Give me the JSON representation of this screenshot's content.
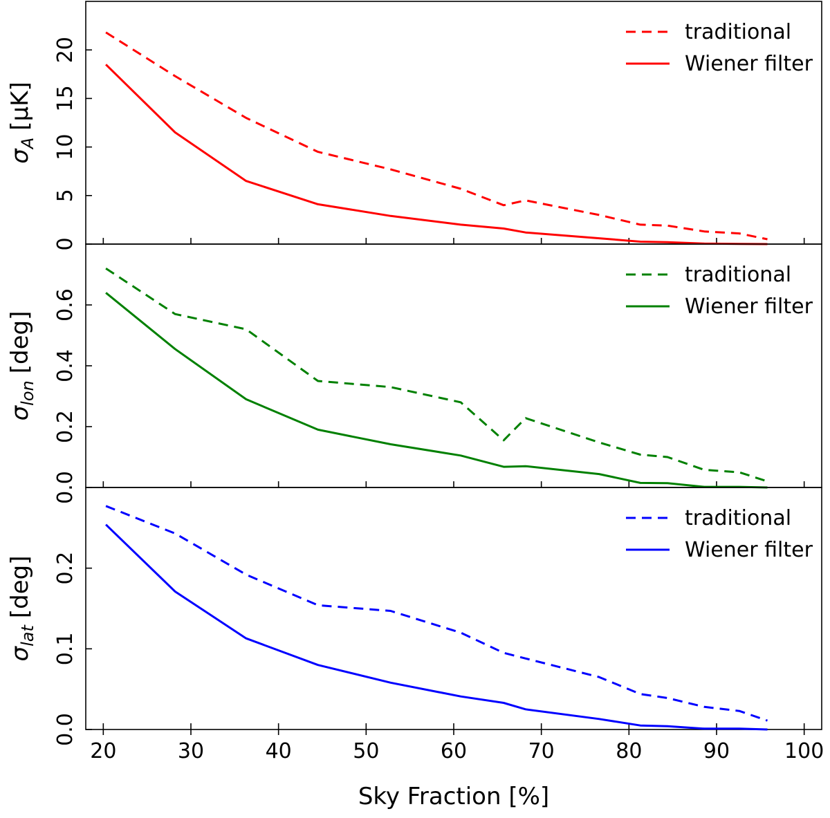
{
  "figure": {
    "xlabel": "Sky Fraction [%]",
    "x_ticks": [
      20,
      30,
      40,
      50,
      60,
      70,
      80,
      90,
      100
    ],
    "xlim": [
      18,
      102
    ]
  },
  "chart_data": [
    {
      "type": "line",
      "panel": "top",
      "ylabel": {
        "symbol": "σ",
        "sub": "A",
        "unit": "[μK]"
      },
      "ylim": [
        0,
        25
      ],
      "y_ticks": [
        0,
        5,
        10,
        15,
        20
      ],
      "y_tick_labels": [
        "0",
        "5",
        "10",
        "15",
        "20"
      ],
      "color": "#ff0000",
      "legend_position": "top-right",
      "series": [
        {
          "name": "traditional",
          "style": "dashed",
          "x": [
            20.3,
            28.2,
            36.3,
            44.5,
            52.8,
            60.8,
            65.7,
            68.2,
            76.6,
            81.3,
            84.4,
            88.6,
            92.6,
            95.8
          ],
          "values": [
            21.8,
            17.3,
            13.0,
            9.5,
            7.7,
            5.7,
            4.0,
            4.5,
            3.0,
            2.0,
            1.9,
            1.3,
            1.1,
            0.5
          ]
        },
        {
          "name": "Wiener filter",
          "style": "solid",
          "x": [
            20.3,
            28.2,
            36.3,
            44.5,
            52.8,
            60.8,
            65.7,
            68.2,
            76.6,
            81.3,
            84.4,
            88.6,
            92.6,
            95.8
          ],
          "values": [
            18.5,
            11.5,
            6.5,
            4.1,
            2.9,
            2.0,
            1.6,
            1.2,
            0.6,
            0.25,
            0.2,
            0.05,
            0.02,
            0.0
          ]
        }
      ]
    },
    {
      "type": "line",
      "panel": "middle",
      "ylabel": {
        "symbol": "σ",
        "sub": "lon",
        "unit": "[deg]"
      },
      "ylim": [
        0,
        0.8
      ],
      "y_ticks": [
        0,
        0.2,
        0.4,
        0.6
      ],
      "y_tick_labels": [
        "0.0",
        "0.2",
        "0.4",
        "0.6"
      ],
      "color": "#008000",
      "legend_position": "top-right",
      "series": [
        {
          "name": "traditional",
          "style": "dashed",
          "x": [
            20.3,
            28.2,
            36.3,
            44.5,
            52.8,
            60.8,
            65.7,
            68.2,
            76.6,
            81.3,
            84.4,
            88.6,
            92.6,
            95.8
          ],
          "values": [
            0.72,
            0.57,
            0.52,
            0.35,
            0.33,
            0.28,
            0.155,
            0.228,
            0.148,
            0.108,
            0.1,
            0.058,
            0.05,
            0.02
          ]
        },
        {
          "name": "Wiener filter",
          "style": "solid",
          "x": [
            20.3,
            28.2,
            36.3,
            44.5,
            52.8,
            60.8,
            65.7,
            68.2,
            76.6,
            81.3,
            84.4,
            88.6,
            92.6,
            95.8
          ],
          "values": [
            0.64,
            0.455,
            0.29,
            0.19,
            0.142,
            0.105,
            0.068,
            0.07,
            0.044,
            0.015,
            0.014,
            0.002,
            0.002,
            0.0
          ]
        }
      ]
    },
    {
      "type": "line",
      "panel": "bottom",
      "ylabel": {
        "symbol": "σ",
        "sub": "lat",
        "unit": "[deg]"
      },
      "ylim": [
        0,
        0.3
      ],
      "y_ticks": [
        0,
        0.1,
        0.2
      ],
      "y_tick_labels": [
        "0.0",
        "0.1",
        "0.2"
      ],
      "color": "#0000ff",
      "legend_position": "top-right",
      "series": [
        {
          "name": "traditional",
          "style": "dashed",
          "x": [
            20.3,
            28.2,
            36.3,
            44.5,
            52.8,
            60.8,
            65.7,
            68.2,
            76.6,
            81.3,
            84.4,
            88.6,
            92.6,
            95.8
          ],
          "values": [
            0.277,
            0.243,
            0.192,
            0.154,
            0.147,
            0.12,
            0.095,
            0.088,
            0.065,
            0.044,
            0.039,
            0.028,
            0.023,
            0.011
          ]
        },
        {
          "name": "Wiener filter",
          "style": "solid",
          "x": [
            20.3,
            28.2,
            36.3,
            44.5,
            52.8,
            60.8,
            65.7,
            68.2,
            76.6,
            81.3,
            84.4,
            88.6,
            92.6,
            95.8
          ],
          "values": [
            0.254,
            0.171,
            0.113,
            0.08,
            0.058,
            0.041,
            0.033,
            0.025,
            0.013,
            0.005,
            0.004,
            0.001,
            0.001,
            0.0
          ]
        }
      ]
    }
  ]
}
